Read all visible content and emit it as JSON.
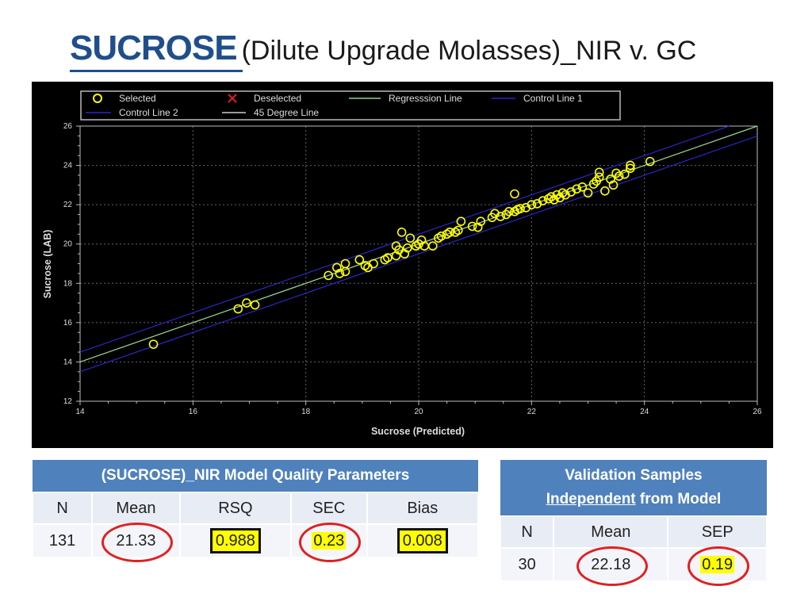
{
  "title": {
    "main": "SUCROSE",
    "sub": "(Dilute Upgrade Molasses)_NIR v. GC"
  },
  "colors": {
    "title": "#1f4e8c",
    "header": "#4f81bd",
    "points": "#ffff00",
    "reg": "#8fd08f",
    "control": "#2828c8",
    "deg45": "#cccccc",
    "ring": "#e02020"
  },
  "chart_data": {
    "type": "scatter",
    "xlabel": "Sucrose (Predicted)",
    "ylabel": "Sucrose (LAB)",
    "xlim": [
      14,
      26
    ],
    "ylim": [
      12,
      26
    ],
    "xticks": [
      "14",
      "16",
      "18",
      "20",
      "22",
      "24",
      "26"
    ],
    "yticks": [
      "12",
      "14",
      "16",
      "18",
      "20",
      "22",
      "24",
      "26"
    ],
    "grid": true,
    "legend": [
      "Selected",
      "Deselected",
      "Regresssion Line",
      "Control Line 1",
      "Control Line 2",
      "45 Degree Line"
    ],
    "lines": {
      "regression": [
        [
          14,
          14
        ],
        [
          26,
          26
        ]
      ],
      "degree45": [
        [
          14,
          14
        ],
        [
          26,
          26
        ]
      ],
      "control1": [
        [
          14,
          14.5
        ],
        [
          26,
          26.5
        ]
      ],
      "control2": [
        [
          14,
          13.5
        ],
        [
          26,
          25.5
        ]
      ]
    },
    "points": [
      [
        15.3,
        14.9
      ],
      [
        16.8,
        16.7
      ],
      [
        16.95,
        17.0
      ],
      [
        17.1,
        16.9
      ],
      [
        18.4,
        18.4
      ],
      [
        18.55,
        18.8
      ],
      [
        18.6,
        18.5
      ],
      [
        18.7,
        19.0
      ],
      [
        18.7,
        18.6
      ],
      [
        18.95,
        19.2
      ],
      [
        19.05,
        18.9
      ],
      [
        19.1,
        18.8
      ],
      [
        19.2,
        19.0
      ],
      [
        19.4,
        19.2
      ],
      [
        19.45,
        19.3
      ],
      [
        19.6,
        19.4
      ],
      [
        19.6,
        19.9
      ],
      [
        19.65,
        19.7
      ],
      [
        19.7,
        20.6
      ],
      [
        19.75,
        19.5
      ],
      [
        19.8,
        19.8
      ],
      [
        19.85,
        20.3
      ],
      [
        19.95,
        19.9
      ],
      [
        20.0,
        20.0
      ],
      [
        20.05,
        20.2
      ],
      [
        20.1,
        19.9
      ],
      [
        20.25,
        19.9
      ],
      [
        20.35,
        20.3
      ],
      [
        20.4,
        20.4
      ],
      [
        20.5,
        20.5
      ],
      [
        20.55,
        20.6
      ],
      [
        20.65,
        20.6
      ],
      [
        20.7,
        20.7
      ],
      [
        20.75,
        21.15
      ],
      [
        20.95,
        20.9
      ],
      [
        21.05,
        20.85
      ],
      [
        21.1,
        21.15
      ],
      [
        21.3,
        21.35
      ],
      [
        21.35,
        21.55
      ],
      [
        21.45,
        21.4
      ],
      [
        21.55,
        21.5
      ],
      [
        21.6,
        21.65
      ],
      [
        21.7,
        21.65
      ],
      [
        21.75,
        21.75
      ],
      [
        21.7,
        22.55
      ],
      [
        21.8,
        21.8
      ],
      [
        21.9,
        21.85
      ],
      [
        22.0,
        22.0
      ],
      [
        22.1,
        22.05
      ],
      [
        22.2,
        22.2
      ],
      [
        22.3,
        22.3
      ],
      [
        22.35,
        22.4
      ],
      [
        22.4,
        22.25
      ],
      [
        22.45,
        22.5
      ],
      [
        22.5,
        22.35
      ],
      [
        22.55,
        22.6
      ],
      [
        22.6,
        22.5
      ],
      [
        22.7,
        22.65
      ],
      [
        22.8,
        22.8
      ],
      [
        22.9,
        22.9
      ],
      [
        23.0,
        22.6
      ],
      [
        23.1,
        23.05
      ],
      [
        23.15,
        23.2
      ],
      [
        23.2,
        23.4
      ],
      [
        23.2,
        23.65
      ],
      [
        23.3,
        22.7
      ],
      [
        23.4,
        23.3
      ],
      [
        23.45,
        23.0
      ],
      [
        23.5,
        23.6
      ],
      [
        23.55,
        23.45
      ],
      [
        23.65,
        23.55
      ],
      [
        23.75,
        23.85
      ],
      [
        23.75,
        24.0
      ],
      [
        24.1,
        24.2
      ]
    ]
  },
  "left_table": {
    "header": "(SUCROSE)_NIR Model Quality Parameters",
    "columns": [
      "N",
      "Mean",
      "RSQ",
      "SEC",
      "Bias"
    ],
    "values": [
      "131",
      "21.33",
      "0.988",
      "0.23",
      "0.008"
    ]
  },
  "right_table": {
    "header_line1": "Validation Samples",
    "header_underlined": "Independent",
    "header_rest": "from Model",
    "columns": [
      "N",
      "Mean",
      "SEP"
    ],
    "values": [
      "30",
      "22.18",
      "0.19"
    ]
  }
}
